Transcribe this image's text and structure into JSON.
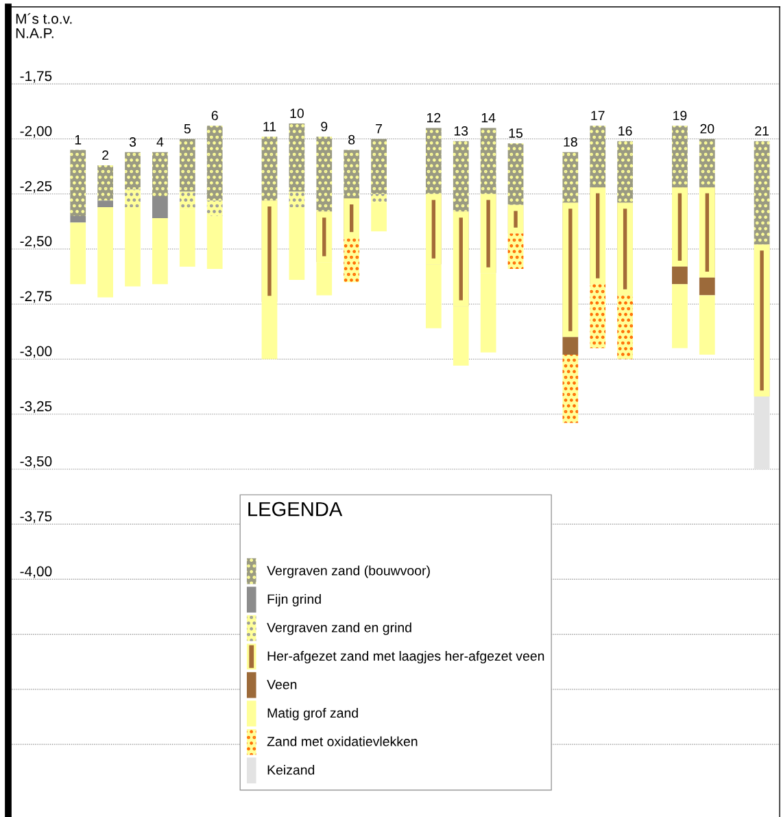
{
  "chart_data": {
    "type": "bar",
    "ylabel": "M´s t.o.v.\nN.A.P.",
    "legend_title": "LEGENDA",
    "categories": [
      "1",
      "2",
      "3",
      "4",
      "5",
      "6",
      null,
      "11",
      "10",
      "9",
      "8",
      "7",
      null,
      "12",
      "13",
      "14",
      "15",
      null,
      "18",
      "17",
      "16",
      null,
      "19",
      "20",
      null,
      "21"
    ],
    "series": [
      {
        "name": "Vergraven zand (bouwvoor)",
        "color": "#9a9a82",
        "base": [
          -2.05,
          -2.12,
          -2.06,
          -2.06,
          -2.0,
          -1.94,
          null,
          -1.99,
          -1.93,
          -1.99,
          -2.05,
          -2.0,
          null,
          -1.95,
          -2.01,
          -1.95,
          -2.02,
          null,
          -2.06,
          -1.94,
          -2.01,
          null,
          -1.94,
          -2.0,
          null,
          -2.01
        ],
        "values": [
          -0.3,
          -0.16,
          -0.17,
          -0.2,
          -0.24,
          -0.34,
          null,
          -0.29,
          -0.31,
          -0.34,
          -0.22,
          -0.25,
          null,
          -0.3,
          -0.32,
          -0.3,
          -0.28,
          null,
          -0.23,
          -0.28,
          -0.28,
          null,
          -0.28,
          -0.22,
          null,
          -0.47
        ]
      },
      {
        "name": "Fijn grind",
        "color": "#8c8c8c",
        "base": [
          -2.35,
          -2.28,
          null,
          -2.26,
          null,
          null,
          null,
          null,
          null,
          null,
          null,
          null,
          null,
          null,
          null,
          null,
          null,
          null,
          null,
          null,
          null,
          null,
          null,
          null,
          null,
          null
        ],
        "values": [
          -0.03,
          -0.03,
          null,
          -0.1,
          null,
          null,
          null,
          null,
          null,
          null,
          null,
          null,
          null,
          null,
          null,
          null,
          null,
          null,
          null,
          null,
          null,
          null,
          null,
          null,
          null,
          null
        ]
      },
      {
        "name": "Vergraven zand en grind",
        "color": "#ffff99",
        "base": [
          null,
          null,
          -2.23,
          null,
          -2.24,
          -2.28,
          null,
          null,
          -2.24,
          null,
          null,
          -2.25,
          null,
          null,
          null,
          null,
          null,
          null,
          null,
          null,
          null,
          null,
          null,
          null,
          null,
          null
        ],
        "values": [
          null,
          null,
          -0.08,
          null,
          -0.08,
          -0.07,
          null,
          null,
          -0.07,
          null,
          null,
          -0.04,
          null,
          null,
          null,
          null,
          null,
          null,
          null,
          null,
          null,
          null,
          null,
          null,
          null,
          null
        ]
      },
      {
        "name": "Her-afgezet zand met laagjes her-afgezet veen",
        "color": "#a36b38",
        "base": [
          null,
          null,
          null,
          null,
          null,
          null,
          null,
          -2.28,
          null,
          -2.33,
          -2.27,
          null,
          null,
          -2.25,
          -2.33,
          -2.25,
          -2.3,
          null,
          -2.29,
          -2.22,
          -2.29,
          null,
          -2.22,
          -2.22,
          null,
          -2.48
        ],
        "values": [
          null,
          null,
          null,
          null,
          null,
          null,
          null,
          -0.46,
          null,
          -0.23,
          -0.18,
          null,
          null,
          -0.32,
          -0.43,
          -0.36,
          -0.13,
          null,
          -0.61,
          -0.44,
          -0.42,
          null,
          -0.36,
          -0.41,
          null,
          -0.69
        ]
      },
      {
        "name": "Veen",
        "color": "#9c6a3a",
        "base": [
          null,
          null,
          null,
          null,
          null,
          null,
          null,
          null,
          null,
          null,
          null,
          null,
          null,
          null,
          null,
          null,
          null,
          null,
          -2.9,
          null,
          null,
          null,
          -2.58,
          -2.63,
          null,
          null
        ],
        "values": [
          null,
          null,
          null,
          null,
          null,
          null,
          null,
          null,
          null,
          null,
          null,
          null,
          null,
          null,
          null,
          null,
          null,
          null,
          -0.08,
          null,
          null,
          null,
          -0.08,
          -0.08,
          null,
          null
        ]
      },
      {
        "name": "Matig grof zand",
        "color": "#ffff99",
        "base": [
          -2.38,
          -2.31,
          -2.31,
          -2.36,
          -2.32,
          -2.35,
          null,
          -2.74,
          -2.31,
          -2.56,
          null,
          -2.29,
          null,
          -2.57,
          -2.76,
          -2.61,
          null,
          null,
          null,
          null,
          null,
          null,
          -2.66,
          -2.71,
          null,
          null
        ],
        "values": [
          -0.28,
          -0.41,
          -0.36,
          -0.3,
          -0.26,
          -0.24,
          null,
          -0.26,
          -0.33,
          -0.15,
          null,
          -0.13,
          null,
          -0.29,
          -0.27,
          -0.36,
          null,
          null,
          null,
          null,
          null,
          null,
          -0.29,
          -0.27,
          null,
          null
        ]
      },
      {
        "name": "Zand met oxidatievlekken",
        "color": "#ffff99",
        "base": [
          null,
          null,
          null,
          null,
          null,
          null,
          null,
          null,
          null,
          null,
          -2.45,
          null,
          null,
          null,
          null,
          null,
          -2.43,
          null,
          -2.98,
          -2.66,
          -2.71,
          null,
          null,
          null,
          null,
          null
        ],
        "values": [
          null,
          null,
          null,
          null,
          null,
          null,
          null,
          null,
          null,
          null,
          -0.2,
          null,
          null,
          null,
          null,
          null,
          -0.16,
          null,
          -0.31,
          -0.29,
          -0.29,
          null,
          null,
          null,
          null,
          null
        ]
      },
      {
        "name": "Keizand",
        "color": "#e3e3e3",
        "base": [
          null,
          null,
          null,
          null,
          null,
          null,
          null,
          null,
          null,
          null,
          null,
          null,
          null,
          null,
          null,
          null,
          null,
          null,
          null,
          null,
          null,
          null,
          null,
          null,
          null,
          -3.17
        ],
        "values": [
          null,
          null,
          null,
          null,
          null,
          null,
          null,
          null,
          null,
          null,
          null,
          null,
          null,
          null,
          null,
          null,
          null,
          null,
          null,
          null,
          null,
          null,
          null,
          null,
          null,
          -0.33
        ]
      }
    ],
    "ylim": [
      -5.08,
      -1.4
    ],
    "yticks": [
      {
        "value": -1.75,
        "label": "-1,75"
      },
      {
        "value": -2.0,
        "label": "-2,00"
      },
      {
        "value": -2.25,
        "label": "-2,25"
      },
      {
        "value": -2.5,
        "label": "-2,50"
      },
      {
        "value": -2.75,
        "label": "-2,75"
      },
      {
        "value": -3.0,
        "label": "-3,00"
      },
      {
        "value": -3.25,
        "label": "-3,25"
      },
      {
        "value": -3.5,
        "label": "-3,50"
      },
      {
        "value": -3.75,
        "label": "-3,75"
      },
      {
        "value": -4.0,
        "label": "-4,00"
      },
      {
        "value": -4.25,
        "label": null
      },
      {
        "value": -4.5,
        "label": null
      },
      {
        "value": -4.75,
        "label": null
      }
    ],
    "grid": "y",
    "legend": "bottom"
  }
}
